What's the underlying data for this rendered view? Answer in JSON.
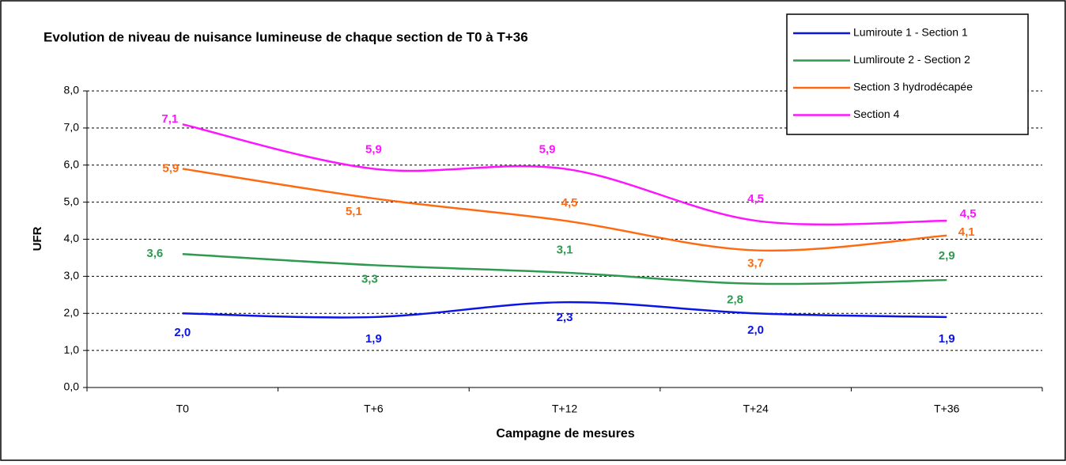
{
  "chart_data": {
    "type": "line",
    "title": "Evolution de niveau de nuisance lumineuse de chaque section de T0 à T+36",
    "x_label": "Campagne de mesures",
    "y_label": "UFR",
    "categories": [
      "T0",
      "T+6",
      "T+12",
      "T+24",
      "T+36"
    ],
    "ylim": [
      0,
      8
    ],
    "yticks": [
      {
        "value": 0,
        "label": "0,0"
      },
      {
        "value": 1,
        "label": "1,0"
      },
      {
        "value": 2,
        "label": "2,0"
      },
      {
        "value": 3,
        "label": "3,0"
      },
      {
        "value": 4,
        "label": "4,0"
      },
      {
        "value": 5,
        "label": "5,0"
      },
      {
        "value": 6,
        "label": "6,0"
      },
      {
        "value": 7,
        "label": "7,0"
      },
      {
        "value": 8,
        "label": "8,0"
      }
    ],
    "grid": true,
    "legend": "upper right",
    "series": [
      {
        "name": "Lumiroute 1 - Section 1",
        "color": "#0a14e6",
        "values": [
          2.0,
          1.9,
          2.3,
          2.0,
          1.9
        ],
        "value_labels": [
          "2,0",
          "1,9",
          "2,3",
          "2,0",
          "1,9"
        ]
      },
      {
        "name": "Lumliroute 2 - Section 2",
        "color": "#2e9a50",
        "values": [
          3.6,
          3.3,
          3.1,
          2.8,
          2.9
        ],
        "value_labels": [
          "3,6",
          "3,3",
          "3,1",
          "2,8",
          "2,9"
        ]
      },
      {
        "name": "Section 3 hydrodécapée",
        "color": "#ff6a10",
        "values": [
          5.9,
          5.1,
          4.5,
          3.7,
          4.1
        ],
        "value_labels": [
          "5,9",
          "5,1",
          "4,5",
          "3,7",
          "4,1"
        ]
      },
      {
        "name": "Section 4",
        "color": "#ff14ff",
        "values": [
          7.1,
          5.9,
          5.9,
          4.5,
          4.5
        ],
        "value_labels": [
          "7,1",
          "5,9",
          "5,9",
          "4,5",
          "4,5"
        ]
      }
    ]
  }
}
